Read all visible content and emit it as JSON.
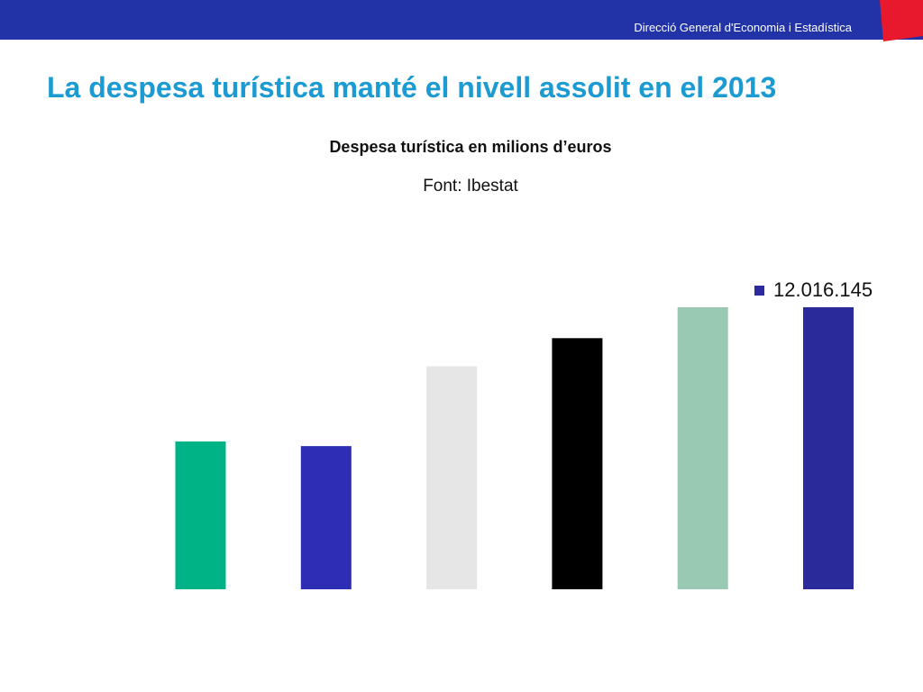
{
  "header": {
    "organization": "Direcció General d'Economia i Estadística",
    "bar_color": "#2233a8",
    "corner_color": "#e8192c"
  },
  "slide": {
    "title": "La despesa turística manté el nivell assolit en el 2013",
    "title_color": "#1c9bd2"
  },
  "chart_data": {
    "type": "bar",
    "title": "Despesa turística en milions d’euros",
    "subtitle": "Font: Ibestat",
    "xlabel": "",
    "ylabel": "",
    "categories": [
      "",
      "",
      "",
      "",
      "",
      ""
    ],
    "values": [
      6.3,
      6.1,
      9.5,
      10.7,
      12.016145,
      12.016145
    ],
    "colors": [
      "#00b386",
      "#2d2db5",
      "#e6e6e6",
      "#000000",
      "#99c8b3",
      "#2a2a9a"
    ],
    "ylim": [
      0,
      12.016145
    ],
    "grid": false,
    "legend": {
      "position": "top-right",
      "entries": [
        {
          "label": "12.016.145",
          "color": "#2d2a9f"
        }
      ]
    }
  }
}
